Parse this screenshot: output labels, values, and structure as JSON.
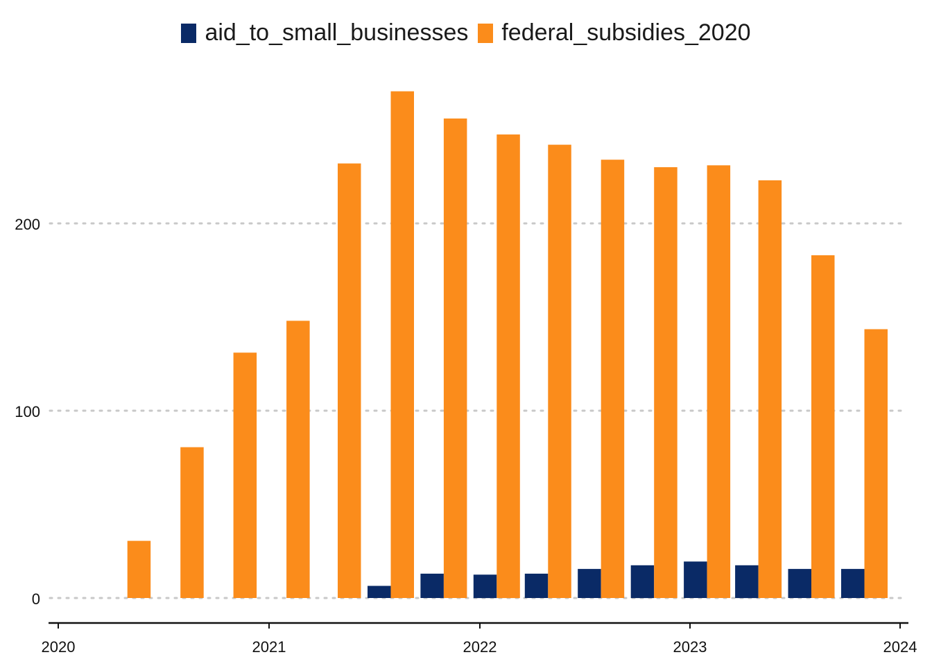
{
  "chart_data": {
    "type": "bar",
    "title": "",
    "xlabel": "",
    "ylabel": "",
    "x_ticks": [
      "2020",
      "2021",
      "2022",
      "2023",
      "2024"
    ],
    "y_ticks": [
      "0",
      "100",
      "200"
    ],
    "xlim": [
      "2020-01-01",
      "2024-01-01"
    ],
    "ylim": [
      -13,
      280
    ],
    "grid": "horizontal dotted",
    "legend_position": "top-center",
    "dates": [
      "2020-04-30",
      "2020-07-31",
      "2020-10-31",
      "2021-01-31",
      "2021-04-30",
      "2021-07-31",
      "2021-10-31",
      "2022-01-31",
      "2022-04-30",
      "2022-07-31",
      "2022-10-31",
      "2023-01-31",
      "2023-04-30",
      "2023-07-31",
      "2023-10-31"
    ],
    "series": [
      {
        "name": "aid_to_small_businesses",
        "color": "#0a2a66",
        "values": [
          null,
          null,
          null,
          null,
          null,
          6.5,
          13,
          12.5,
          13,
          15.5,
          17.5,
          19.5,
          17.5,
          15.5,
          15.5
        ]
      },
      {
        "name": "federal_subsidies_2020",
        "color": "#fb8c1b",
        "values": [
          30.5,
          80.5,
          131,
          148,
          232,
          270.5,
          256,
          247.5,
          242,
          234,
          230,
          231,
          223,
          183,
          143.5
        ]
      }
    ]
  }
}
